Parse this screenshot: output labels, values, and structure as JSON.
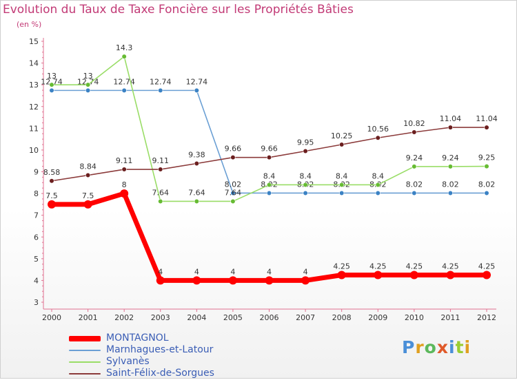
{
  "chart_data": {
    "type": "line",
    "title": "Evolution du Taux de Taxe Foncière sur les Propriétés Bâties",
    "subtitle": "(en %)",
    "x": [
      "2000",
      "2001",
      "2002",
      "2003",
      "2004",
      "2005",
      "2006",
      "2007",
      "2008",
      "2009",
      "2010",
      "2011",
      "2012"
    ],
    "ylim": [
      3,
      15
    ],
    "yticks": [
      3,
      4,
      5,
      6,
      7,
      8,
      9,
      10,
      11,
      12,
      13,
      14,
      15
    ],
    "series": [
      {
        "name": "MONTAGNOL",
        "color": "#ff0000",
        "values": [
          7.5,
          7.5,
          8,
          4,
          4,
          4,
          4,
          4,
          4.25,
          4.25,
          4.25,
          4.25,
          4.25
        ],
        "labels": [
          "7.5",
          "7.5",
          "8",
          "4",
          "4",
          "4",
          "4",
          "4",
          "4.25",
          "4.25",
          "4.25",
          "4.25",
          "4.25"
        ]
      },
      {
        "name": "Marnhagues-et-Latour",
        "color": "#6a9fd4",
        "marker": "#3b82c4",
        "values": [
          12.74,
          12.74,
          12.74,
          12.74,
          12.74,
          8.02,
          8.02,
          8.02,
          8.02,
          8.02,
          8.02,
          8.02,
          8.02
        ],
        "labels": [
          "12.74",
          "12.74",
          "12.74",
          "12.74",
          "12.74",
          "8.02",
          "8.02",
          "8.02",
          "8.02",
          "8.02",
          "8.02",
          "8.02",
          "8.02"
        ]
      },
      {
        "name": "Sylvanès",
        "color": "#99dd66",
        "marker": "#66bb33",
        "values": [
          13,
          13,
          14.3,
          7.64,
          7.64,
          7.64,
          8.4,
          8.4,
          8.4,
          8.4,
          9.24,
          9.24,
          9.25
        ],
        "labels": [
          "13",
          "13",
          "14.3",
          "7.64",
          "7.64",
          "7.64",
          "8.4",
          "8.4",
          "8.4",
          "8.4",
          "9.24",
          "9.24",
          "9.25"
        ]
      },
      {
        "name": "Saint-Félix-de-Sorgues",
        "color": "#8b3a3a",
        "marker": "#6b1f1f",
        "values": [
          8.58,
          8.84,
          9.11,
          9.11,
          9.38,
          9.66,
          9.66,
          9.95,
          10.25,
          10.56,
          10.82,
          11.04,
          11.04
        ],
        "labels": [
          "8.58",
          "8.84",
          "9.11",
          "9.11",
          "9.38",
          "9.66",
          "9.66",
          "9.95",
          "10.25",
          "10.56",
          "10.82",
          "11.04",
          "11.04"
        ]
      }
    ],
    "grid": false,
    "legend": "bottom-left"
  },
  "logo": {
    "text": "Proxiti"
  }
}
